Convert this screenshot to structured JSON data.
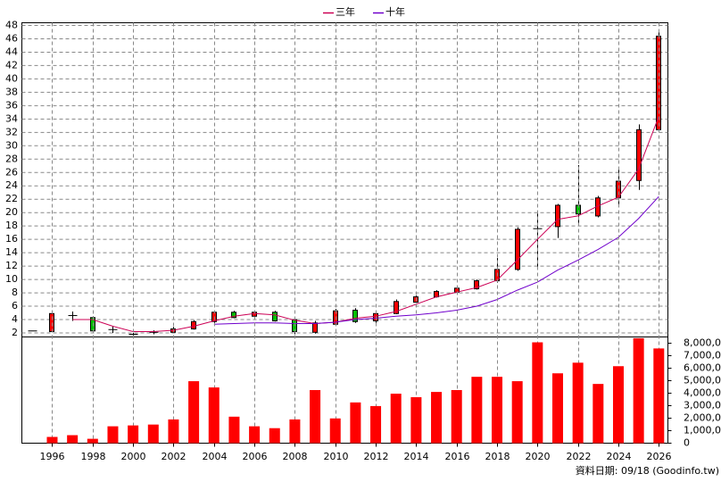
{
  "chart_data": [
    {
      "type": "candlestick",
      "x": [
        1995,
        1996,
        1997,
        1998,
        1999,
        2000,
        2001,
        2002,
        2003,
        2004,
        2005,
        2006,
        2007,
        2008,
        2009,
        2010,
        2011,
        2012,
        2013,
        2014,
        2015,
        2016,
        2017,
        2018,
        2019,
        2020,
        2021,
        2022,
        2023,
        2024,
        2025,
        2026
      ],
      "open": [
        2.3,
        2.2,
        4.6,
        4.3,
        2.5,
        1.8,
        2.1,
        2.1,
        2.6,
        3.7,
        5.1,
        4.5,
        5.1,
        4.0,
        2.1,
        3.3,
        5.4,
        3.8,
        4.9,
        6.6,
        7.4,
        8.1,
        8.6,
        9.8,
        11.5,
        17.6,
        17.9,
        21.1,
        19.5,
        22.2,
        24.8,
        32.4
      ],
      "high": [
        2.3,
        5.0,
        5.2,
        4.5,
        3.0,
        2.0,
        2.4,
        2.9,
        3.9,
        5.3,
        5.3,
        5.3,
        5.3,
        4.2,
        3.8,
        5.6,
        5.7,
        5.3,
        7.0,
        7.6,
        8.4,
        8.9,
        10.0,
        13.2,
        17.8,
        20.0,
        21.3,
        27.1,
        22.5,
        26.4,
        33.2,
        47.2
      ],
      "low": [
        2.3,
        2.2,
        3.8,
        2.2,
        2.0,
        1.6,
        1.8,
        2.0,
        2.5,
        3.3,
        4.2,
        4.2,
        3.7,
        1.8,
        1.9,
        3.0,
        3.5,
        3.5,
        4.8,
        6.5,
        7.3,
        8.0,
        8.5,
        9.5,
        11.3,
        11.8,
        16.2,
        18.0,
        19.3,
        20.8,
        23.4,
        32.3
      ],
      "close": [
        2.3,
        4.9,
        4.6,
        2.3,
        2.5,
        1.8,
        2.1,
        2.6,
        3.7,
        5.1,
        4.3,
        5.1,
        3.8,
        2.2,
        3.5,
        5.3,
        3.7,
        4.9,
        6.7,
        7.4,
        8.2,
        8.7,
        9.8,
        11.5,
        17.5,
        17.6,
        21.1,
        19.8,
        22.2,
        24.7,
        32.4,
        46.4
      ],
      "up_color": "#ff0000",
      "down_color": "#00c000",
      "doji_color": "#000000",
      "series": [
        {
          "name": "三年",
          "color": "#cc0055",
          "values": [
            null,
            null,
            4.0,
            4.0,
            3.0,
            2.2,
            2.2,
            2.4,
            3.0,
            3.8,
            4.5,
            4.9,
            4.7,
            3.9,
            3.4,
            3.6,
            4.2,
            4.5,
            5.2,
            6.3,
            7.4,
            8.1,
            8.8,
            9.9,
            12.9,
            16.0,
            19.0,
            19.5,
            21.0,
            22.3,
            26.5,
            34.4
          ]
        },
        {
          "name": "十年",
          "color": "#7000cc",
          "values": [
            null,
            null,
            null,
            null,
            null,
            null,
            null,
            null,
            null,
            3.3,
            3.4,
            3.5,
            3.5,
            3.4,
            3.4,
            3.6,
            4.0,
            4.2,
            4.5,
            4.7,
            5.0,
            5.4,
            6.0,
            7.0,
            8.4,
            9.6,
            11.4,
            12.9,
            14.5,
            16.3,
            19.1,
            22.4
          ]
        }
      ],
      "xlim": [
        1994.5,
        2026.45
      ],
      "ylim": [
        1.4,
        48.4
      ],
      "yticks": [
        2,
        4,
        6,
        8,
        10,
        12,
        14,
        16,
        18,
        20,
        22,
        24,
        26,
        28,
        30,
        32,
        34,
        36,
        38,
        40,
        42,
        44,
        46,
        48
      ],
      "grid": true,
      "legend": "top"
    },
    {
      "type": "bar",
      "x": [
        1995,
        1996,
        1997,
        1998,
        1999,
        2000,
        2001,
        2002,
        2003,
        2004,
        2005,
        2006,
        2007,
        2008,
        2009,
        2010,
        2011,
        2012,
        2013,
        2014,
        2015,
        2016,
        2017,
        2018,
        2019,
        2020,
        2021,
        2022,
        2023,
        2024,
        2025,
        2026
      ],
      "values": [
        0,
        500000,
        640000,
        350000,
        1350000,
        1420000,
        1490000,
        1900000,
        4960000,
        4460000,
        2120000,
        1350000,
        1200000,
        1900000,
        4250000,
        1980000,
        3260000,
        2970000,
        3960000,
        3680000,
        4100000,
        4250000,
        5310000,
        5310000,
        4960000,
        8070000,
        5590000,
        6440000,
        4740000,
        6160000,
        8400000,
        7580000
      ],
      "color": "#ff0000",
      "xlim": [
        1994.5,
        2026.45
      ],
      "xticks": [
        1996,
        1998,
        2000,
        2002,
        2004,
        2006,
        2008,
        2010,
        2012,
        2014,
        2016,
        2018,
        2020,
        2022,
        2024,
        2026
      ],
      "ylim": [
        0,
        8500000
      ],
      "yticks": [
        0,
        {
          "value": 1000000,
          "label": "1,000,000"
        },
        {
          "value": 2000000,
          "label": "2,000,000"
        },
        {
          "value": 3000000,
          "label": "3,000,000"
        },
        {
          "value": 4000000,
          "label": "4,000,000"
        },
        {
          "value": 5000000,
          "label": "5,000,000"
        },
        {
          "value": 6000000,
          "label": "6,000,000"
        },
        {
          "value": 7000000,
          "label": "7,000,000"
        },
        {
          "value": 8000000,
          "label": "8,000,000"
        }
      ],
      "grid": true,
      "note": "資料日期: 09/18 (Goodinfo.tw)"
    }
  ]
}
